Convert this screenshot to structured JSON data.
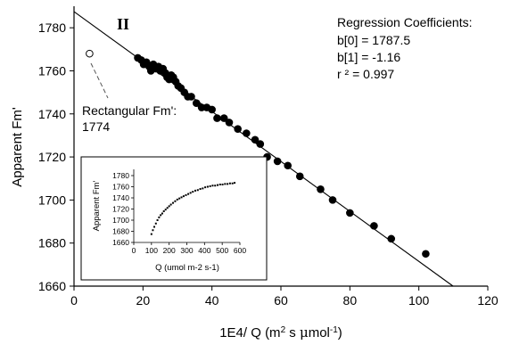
{
  "chart_data": [
    {
      "type": "scatter",
      "panel_label": "II",
      "xlabel": "1E4/ Q (m2 s μmol-1)",
      "xlabel_parts": {
        "main": "1E4/ Q (m",
        "sup1": "2",
        "mid": " s ",
        "mu": "μ",
        "after": "mol",
        "sup2": "-1",
        "end": ")"
      },
      "ylabel": "Apparent Fm'",
      "xlim": [
        0,
        120
      ],
      "ylim": [
        1660,
        1790
      ],
      "xticks": [
        "0",
        "20",
        "40",
        "60",
        "80",
        "100",
        "120"
      ],
      "yticks": [
        "1660",
        "1680",
        "1700",
        "1720",
        "1740",
        "1760",
        "1780"
      ],
      "regression_text": {
        "title": "Regression Coefficients:",
        "b0": "b[0] = 1787.5",
        "b1": "b[1] = -1.16",
        "r2": "r ² = 0.997"
      },
      "regression_line": {
        "intercept": 1787.5,
        "slope": -1.16
      },
      "annotation": {
        "label": "Rectangular Fm':",
        "value": "1774",
        "point": {
          "x": 4.5,
          "y": 1768
        }
      },
      "points": [
        {
          "x": 18.5,
          "y": 1766
        },
        {
          "x": 19.5,
          "y": 1765
        },
        {
          "x": 20.2,
          "y": 1763
        },
        {
          "x": 21.0,
          "y": 1764
        },
        {
          "x": 21.8,
          "y": 1762
        },
        {
          "x": 22.3,
          "y": 1760
        },
        {
          "x": 23.0,
          "y": 1763
        },
        {
          "x": 23.8,
          "y": 1761
        },
        {
          "x": 24.5,
          "y": 1762
        },
        {
          "x": 25.0,
          "y": 1760
        },
        {
          "x": 25.8,
          "y": 1761
        },
        {
          "x": 26.5,
          "y": 1759
        },
        {
          "x": 27.0,
          "y": 1757
        },
        {
          "x": 27.6,
          "y": 1756
        },
        {
          "x": 28.2,
          "y": 1758
        },
        {
          "x": 28.8,
          "y": 1757
        },
        {
          "x": 29.5,
          "y": 1755
        },
        {
          "x": 30.2,
          "y": 1753
        },
        {
          "x": 31.0,
          "y": 1752
        },
        {
          "x": 32.0,
          "y": 1750
        },
        {
          "x": 33.0,
          "y": 1748
        },
        {
          "x": 34.0,
          "y": 1748
        },
        {
          "x": 35.5,
          "y": 1745
        },
        {
          "x": 37.0,
          "y": 1743
        },
        {
          "x": 38.5,
          "y": 1743
        },
        {
          "x": 40.0,
          "y": 1742
        },
        {
          "x": 41.5,
          "y": 1738
        },
        {
          "x": 43.5,
          "y": 1738
        },
        {
          "x": 45.0,
          "y": 1736
        },
        {
          "x": 47.5,
          "y": 1733
        },
        {
          "x": 50.0,
          "y": 1731
        },
        {
          "x": 52.5,
          "y": 1728
        },
        {
          "x": 54.0,
          "y": 1726
        },
        {
          "x": 56.0,
          "y": 1720
        },
        {
          "x": 59.0,
          "y": 1718
        },
        {
          "x": 62.0,
          "y": 1716
        },
        {
          "x": 65.5,
          "y": 1711
        },
        {
          "x": 71.5,
          "y": 1705
        },
        {
          "x": 75.0,
          "y": 1700
        },
        {
          "x": 80.0,
          "y": 1694
        },
        {
          "x": 87.0,
          "y": 1688
        },
        {
          "x": 92.0,
          "y": 1682
        },
        {
          "x": 102.0,
          "y": 1675
        }
      ]
    },
    {
      "type": "scatter",
      "xlabel": "Q (umol m-2 s-1)",
      "ylabel": "Apparent Fm'",
      "xlim": [
        0,
        600
      ],
      "ylim": [
        1660,
        1780
      ],
      "xticks": [
        "0",
        "100",
        "200",
        "300",
        "400",
        "500",
        "600"
      ],
      "yticks": [
        "1660",
        "1680",
        "1700",
        "1720",
        "1740",
        "1760",
        "1780"
      ],
      "points": [
        {
          "x": 100,
          "y": 1675
        },
        {
          "x": 108,
          "y": 1682
        },
        {
          "x": 116,
          "y": 1688
        },
        {
          "x": 125,
          "y": 1694
        },
        {
          "x": 134,
          "y": 1700
        },
        {
          "x": 143,
          "y": 1705
        },
        {
          "x": 152,
          "y": 1709
        },
        {
          "x": 161,
          "y": 1712
        },
        {
          "x": 170,
          "y": 1716
        },
        {
          "x": 180,
          "y": 1719
        },
        {
          "x": 190,
          "y": 1722
        },
        {
          "x": 200,
          "y": 1725
        },
        {
          "x": 210,
          "y": 1728
        },
        {
          "x": 222,
          "y": 1731
        },
        {
          "x": 234,
          "y": 1734
        },
        {
          "x": 246,
          "y": 1737
        },
        {
          "x": 258,
          "y": 1739
        },
        {
          "x": 270,
          "y": 1741
        },
        {
          "x": 282,
          "y": 1743
        },
        {
          "x": 295,
          "y": 1745
        },
        {
          "x": 308,
          "y": 1747
        },
        {
          "x": 321,
          "y": 1749
        },
        {
          "x": 334,
          "y": 1751
        },
        {
          "x": 348,
          "y": 1753
        },
        {
          "x": 362,
          "y": 1754
        },
        {
          "x": 376,
          "y": 1756
        },
        {
          "x": 390,
          "y": 1757
        },
        {
          "x": 404,
          "y": 1759
        },
        {
          "x": 418,
          "y": 1760
        },
        {
          "x": 432,
          "y": 1761
        },
        {
          "x": 446,
          "y": 1762
        },
        {
          "x": 460,
          "y": 1762
        },
        {
          "x": 474,
          "y": 1763
        },
        {
          "x": 488,
          "y": 1764
        },
        {
          "x": 502,
          "y": 1764
        },
        {
          "x": 516,
          "y": 1765
        },
        {
          "x": 530,
          "y": 1765
        },
        {
          "x": 544,
          "y": 1766
        },
        {
          "x": 558,
          "y": 1766
        },
        {
          "x": 570,
          "y": 1767
        }
      ]
    }
  ]
}
